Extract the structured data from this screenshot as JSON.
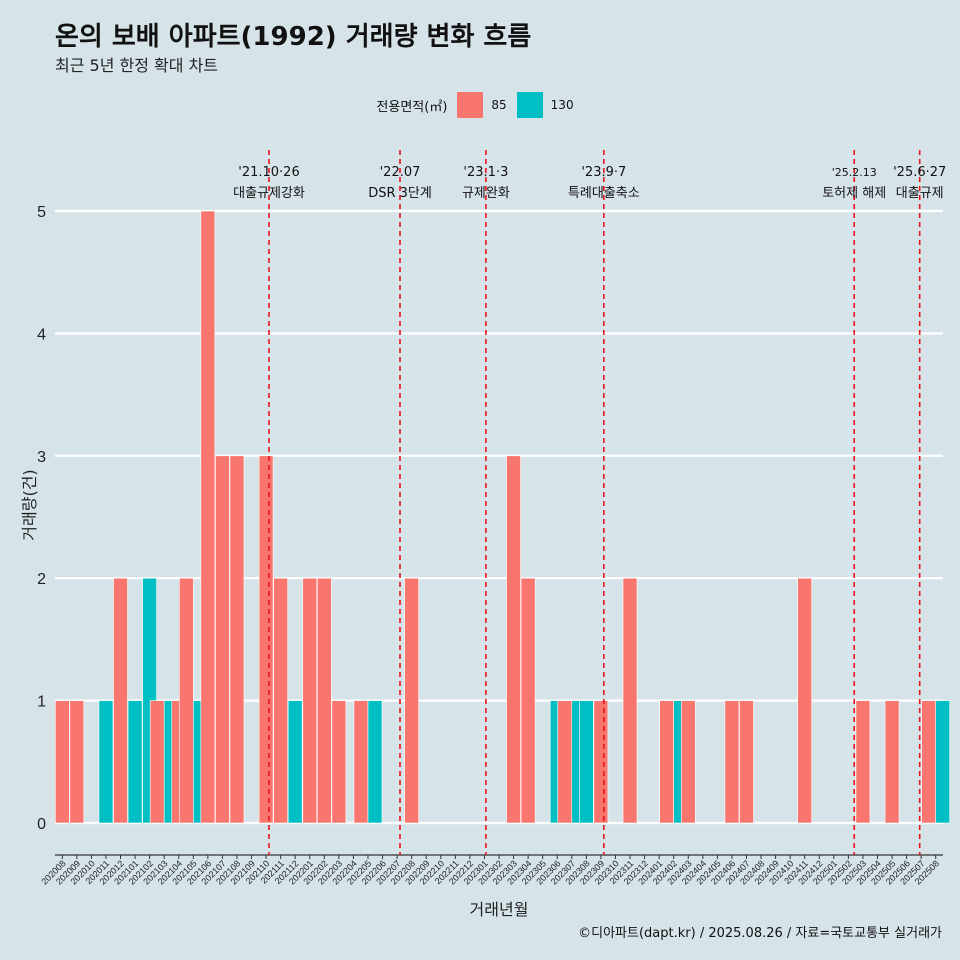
{
  "header": {
    "title": "온의 보배 아파트(1992) 거래량 변화 흐름",
    "subtitle": "최근 5년 한정 확대 차트"
  },
  "legend": {
    "title": "전용면적(㎡)",
    "items": [
      {
        "label": "85",
        "color": "#F8766D"
      },
      {
        "label": "130",
        "color": "#00BFC4"
      }
    ]
  },
  "caption": "©디아파트(dapt.kr) / 2025.08.26 / 자료=국토교통부 실거래가",
  "chart_data": {
    "type": "bar",
    "xlabel": "거래년월",
    "ylabel": "거래량(건)",
    "ylim": [
      0,
      5
    ],
    "yticks": [
      0,
      1,
      2,
      3,
      4,
      5
    ],
    "categories": [
      "202008",
      "202009",
      "202010",
      "202011",
      "202012",
      "202101",
      "202102",
      "202103",
      "202104",
      "202105",
      "202106",
      "202107",
      "202108",
      "202109",
      "202110",
      "202111",
      "202112",
      "202201",
      "202202",
      "202203",
      "202204",
      "202205",
      "202206",
      "202207",
      "202208",
      "202209",
      "202210",
      "202211",
      "202212",
      "202301",
      "202302",
      "202303",
      "202304",
      "202305",
      "202306",
      "202307",
      "202308",
      "202309",
      "202310",
      "202311",
      "202312",
      "202401",
      "202402",
      "202403",
      "202404",
      "202405",
      "202406",
      "202407",
      "202408",
      "202409",
      "202410",
      "202411",
      "202412",
      "202501",
      "202502",
      "202503",
      "202504",
      "202505",
      "202506",
      "202507",
      "202508"
    ],
    "series": [
      {
        "name": "85",
        "color": "#F8766D",
        "values": [
          1,
          1,
          0,
          0,
          2,
          0,
          0,
          1,
          1,
          2,
          5,
          3,
          3,
          0,
          3,
          2,
          0,
          2,
          2,
          1,
          0,
          1,
          0,
          0,
          2,
          0,
          0,
          0,
          0,
          0,
          0,
          3,
          2,
          0,
          0,
          1,
          0,
          1,
          0,
          2,
          0,
          0,
          1,
          1,
          0,
          0,
          1,
          1,
          0,
          0,
          0,
          2,
          0,
          0,
          0,
          1,
          0,
          1,
          0,
          0,
          1
        ]
      },
      {
        "name": "130",
        "color": "#00BFC4",
        "values": [
          0,
          0,
          0,
          1,
          0,
          1,
          2,
          1,
          0,
          1,
          0,
          0,
          0,
          0,
          0,
          0,
          1,
          0,
          0,
          0,
          0,
          1,
          0,
          0,
          0,
          0,
          0,
          0,
          0,
          0,
          0,
          0,
          0,
          0,
          1,
          1,
          1,
          0,
          0,
          0,
          0,
          0,
          1,
          0,
          0,
          0,
          0,
          0,
          0,
          0,
          0,
          0,
          0,
          0,
          0,
          0,
          0,
          0,
          0,
          0,
          1
        ]
      }
    ],
    "annotations": [
      {
        "after_category": "202110",
        "offset": 0.2,
        "line1": "'21.10·26",
        "line2": "대출규제강화"
      },
      {
        "after_category": "202207",
        "offset": 0.2,
        "line1": "'22.07",
        "line2": "DSR 3단계"
      },
      {
        "after_category": "202301",
        "offset": 0.1,
        "line1": "'23.1·3",
        "line2": "규제완화"
      },
      {
        "after_category": "202309",
        "offset": 0.2,
        "line1": "'23.9·7",
        "line2": "특례대출축소"
      },
      {
        "after_category": "202502",
        "offset": 0.4,
        "line1": "'25.2.13",
        "line2": "토허제 해제"
      },
      {
        "after_category": "202506",
        "offset": 0.9,
        "line1": "'25.6·27",
        "line2": "대출규제"
      }
    ]
  }
}
